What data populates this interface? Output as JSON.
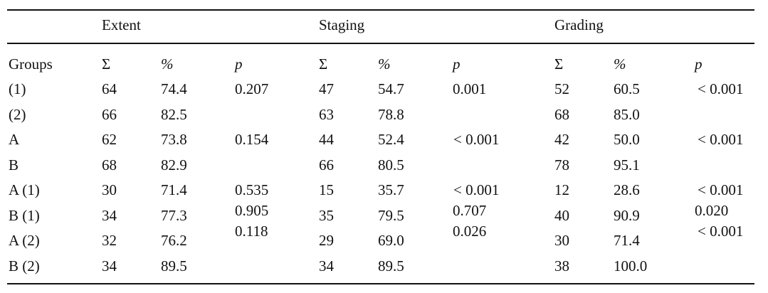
{
  "table": {
    "groups": [
      {
        "label": "Extent"
      },
      {
        "label": "Staging"
      },
      {
        "label": "Grading"
      }
    ],
    "header": {
      "groups_label": "Groups",
      "sigma": "Σ",
      "percent": "%",
      "p": "p"
    },
    "rows": [
      {
        "group": "(1)",
        "c": [
          "64",
          "74.4",
          "47",
          "54.7",
          "52",
          "60.5"
        ]
      },
      {
        "group": "(2)",
        "c": [
          "66",
          "82.5",
          "63",
          "78.8",
          "68",
          "85.0"
        ]
      },
      {
        "group": "A",
        "c": [
          "62",
          "73.8",
          "44",
          "52.4",
          "42",
          "50.0"
        ]
      },
      {
        "group": "B",
        "c": [
          "68",
          "82.9",
          "66",
          "80.5",
          "78",
          "95.1"
        ]
      },
      {
        "group": "A (1)",
        "c": [
          "30",
          "71.4",
          "15",
          "35.7",
          "12",
          "28.6"
        ]
      },
      {
        "group": "B (1)",
        "c": [
          "34",
          "77.3",
          "35",
          "79.5",
          "40",
          "90.9"
        ]
      },
      {
        "group": "A (2)",
        "c": [
          "32",
          "76.2",
          "29",
          "69.0",
          "30",
          "71.4"
        ]
      },
      {
        "group": "B (2)",
        "c": [
          "34",
          "89.5",
          "34",
          "89.5",
          "38",
          "100.0"
        ]
      }
    ],
    "pvalues": {
      "extent": [
        "0.207",
        "0.154",
        "0.535",
        "0.905",
        "0.118"
      ],
      "staging": [
        "0.001",
        "< 0.001",
        "< 0.001",
        "0.707",
        "0.026"
      ],
      "grading": [
        "< 0.001",
        "< 0.001",
        "< 0.001",
        "0.020",
        "< 0.001"
      ]
    }
  }
}
